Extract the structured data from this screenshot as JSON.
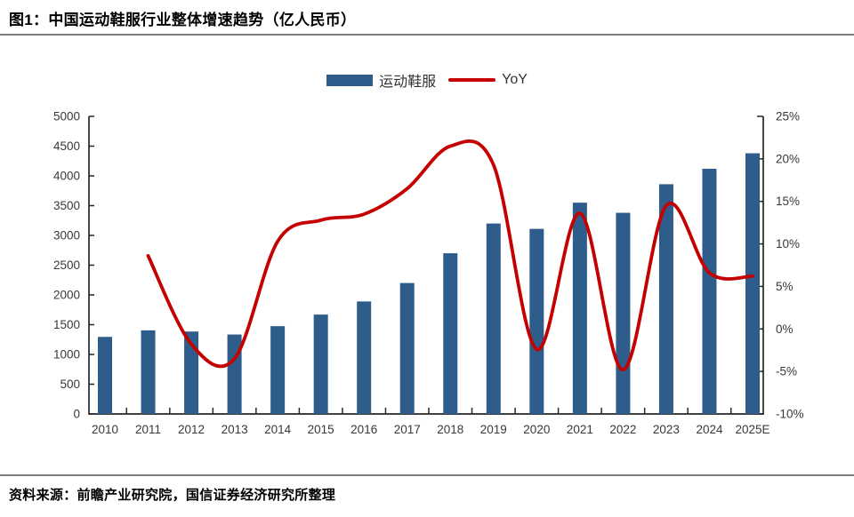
{
  "header": {
    "title": "图1：中国运动鞋服行业整体增速趋势（亿人民币）"
  },
  "footer": {
    "source": "资料来源：前瞻产业研究院，国信证券经济研究所整理"
  },
  "legend": {
    "bar_label": "运动鞋服",
    "line_label": "YoY"
  },
  "colors": {
    "bar": "#2e5d8c",
    "line": "#c40000",
    "axis": "#262626",
    "tick_text": "#383838"
  },
  "chart_data": {
    "type": "bar",
    "subtype": "combo-bar-line-dual-axis",
    "title": "中国运动鞋服行业整体增速趋势（亿人民币）",
    "categories": [
      "2010",
      "2011",
      "2012",
      "2013",
      "2014",
      "2015",
      "2016",
      "2017",
      "2018",
      "2019",
      "2020",
      "2021",
      "2022",
      "2023",
      "2024",
      "2025E"
    ],
    "series": [
      {
        "name": "运动鞋服",
        "type": "bar",
        "axis": "left",
        "unit": "亿人民币",
        "values": [
          1295,
          1405,
          1385,
          1335,
          1475,
          1670,
          1890,
          2200,
          2700,
          3200,
          3110,
          3550,
          3380,
          3860,
          4120,
          4380
        ]
      },
      {
        "name": "YoY",
        "type": "line",
        "axis": "right",
        "unit": "%",
        "values": [
          null,
          8.6,
          -1.8,
          -3.5,
          10.3,
          12.8,
          13.5,
          16.5,
          21.5,
          19.3,
          -2.4,
          13.6,
          -4.8,
          14.5,
          6.6,
          6.2
        ]
      }
    ],
    "left_axis": {
      "min": 0,
      "max": 5000,
      "step": 500
    },
    "right_axis": {
      "min": -10,
      "max": 25,
      "step": 5,
      "suffix": "%"
    },
    "grid": false,
    "legend_position": "top-center",
    "xlabel": "",
    "ylabel": ""
  }
}
